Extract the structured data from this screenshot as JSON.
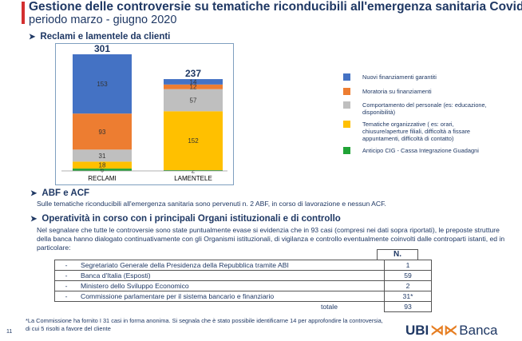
{
  "header": {
    "title": "Gestione delle controversie su tematiche riconducibili all'emergenza sanitaria Covid",
    "subtitle": "periodo marzo - giugno 2020"
  },
  "sections": {
    "complaints": "Reclami e lamentele da clienti",
    "abf_title": "ABF e ACF",
    "abf_text": "Sulle tematiche riconducibili all'emergenza sanitaria sono pervenuti n. 2 ABF, in corso di lavorazione e nessun ACF.",
    "ops_title": "Operatività in corso con i principali Organi istituzionali e di controllo",
    "ops_text": "Nel segnalare che tutte le controversie sono state puntualmente evase si evidenzia che in 93 casi (compresi nei dati sopra riportati), le preposte strutture della banca hanno dialogato continuativamente con gli Organismi istituzionali, di vigilanza e controllo eventualmente coinvolti dalle controparti istanti, ed in particolare:"
  },
  "chart_data": {
    "type": "bar",
    "stacked": true,
    "categories": [
      "RECLAMI",
      "LAMENTELE"
    ],
    "totals": [
      301,
      237
    ],
    "series": [
      {
        "name": "Anticipo CIG - Cassa Integrazione Guadagni",
        "color": "#21a336",
        "values": [
          6,
          2
        ]
      },
      {
        "name": "Tematiche organizzative ( es: orari, chiusure/aperture filiali, difficoltà a fissare appuntamenti, difficoltà di contatto)",
        "color": "#ffc000",
        "values": [
          18,
          152
        ]
      },
      {
        "name": "Comportamento del personale (es: educazione, disponibilità)",
        "color": "#bfbfbf",
        "values": [
          31,
          57
        ]
      },
      {
        "name": "Moratoria su finanziamenti",
        "color": "#ed7d31",
        "values": [
          93,
          12
        ]
      },
      {
        "name": "Nuovi finanziamenti garantiti",
        "color": "#4472c4",
        "values": [
          153,
          14
        ]
      }
    ],
    "value_labels": [
      [
        "6",
        "18",
        "31",
        "93",
        "153"
      ],
      [
        "2",
        "152",
        "57",
        "12",
        "14"
      ]
    ],
    "legend_order": [
      4,
      3,
      2,
      1,
      0
    ],
    "legend_position": "right",
    "grid": false
  },
  "table": {
    "header": "N.",
    "bullet": "-",
    "rows": [
      {
        "label": "Segretariato Generale della Presidenza della Repubblica tramite ABI",
        "value": "1"
      },
      {
        "label": "Banca d'Italia (Esposti)",
        "value": "59"
      },
      {
        "label": "Ministero dello Sviluppo Economico",
        "value": "2"
      },
      {
        "label": "Commissione parlamentare per il sistema bancario e finanziario",
        "value": "31*"
      }
    ],
    "total_label": "totale",
    "total_value": "93"
  },
  "footer": {
    "note_line1": "*La Commissione ha fornito I 31 casi in forma anonima. Si segnala che è stato possibile identificarne 14 per approfondire la controversia,",
    "note_line2": "di cui 5 risolti a favore del cliente",
    "page_number": "11",
    "logo_left": "UBI",
    "logo_right": "Banca"
  }
}
